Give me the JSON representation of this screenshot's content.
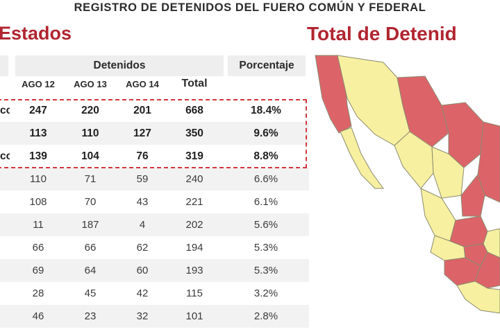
{
  "header": {
    "title": "REGISTRO DE DETENIDOS DEL FUERO COMÚN Y FEDERAL"
  },
  "left_panel": {
    "title": "Estados",
    "group_header": "Detenidos",
    "percent_header": "Porcentaje",
    "columns": [
      "AGO 12",
      "AGO 13",
      "AGO 14",
      "Total"
    ],
    "rows": [
      {
        "state": "co",
        "values": [
          "247",
          "220",
          "201",
          "668"
        ],
        "pct": "18.4%",
        "highlight": true
      },
      {
        "state": "",
        "values": [
          "113",
          "110",
          "127",
          "350"
        ],
        "pct": "9.6%",
        "highlight": true
      },
      {
        "state": "co",
        "values": [
          "139",
          "104",
          "76",
          "319"
        ],
        "pct": "8.8%",
        "highlight": true
      },
      {
        "state": "",
        "values": [
          "110",
          "71",
          "59",
          "240"
        ],
        "pct": "6.6%",
        "highlight": false
      },
      {
        "state": "",
        "values": [
          "108",
          "70",
          "43",
          "221"
        ],
        "pct": "6.1%",
        "highlight": false
      },
      {
        "state": "",
        "values": [
          "11",
          "187",
          "4",
          "202"
        ],
        "pct": "5.6%",
        "highlight": false
      },
      {
        "state": "",
        "values": [
          "66",
          "66",
          "62",
          "194"
        ],
        "pct": "5.3%",
        "highlight": false
      },
      {
        "state": "",
        "values": [
          "69",
          "64",
          "60",
          "193"
        ],
        "pct": "5.3%",
        "highlight": false
      },
      {
        "state": "",
        "values": [
          "28",
          "45",
          "42",
          "115"
        ],
        "pct": "3.2%",
        "highlight": false
      },
      {
        "state": "",
        "values": [
          "46",
          "23",
          "32",
          "101"
        ],
        "pct": "2.8%",
        "highlight": false
      }
    ]
  },
  "right_panel": {
    "title": "Total de Detenid",
    "map_colors": {
      "high": "#dc6468",
      "low": "#f7f0a0",
      "border": "#8a8a70"
    }
  }
}
